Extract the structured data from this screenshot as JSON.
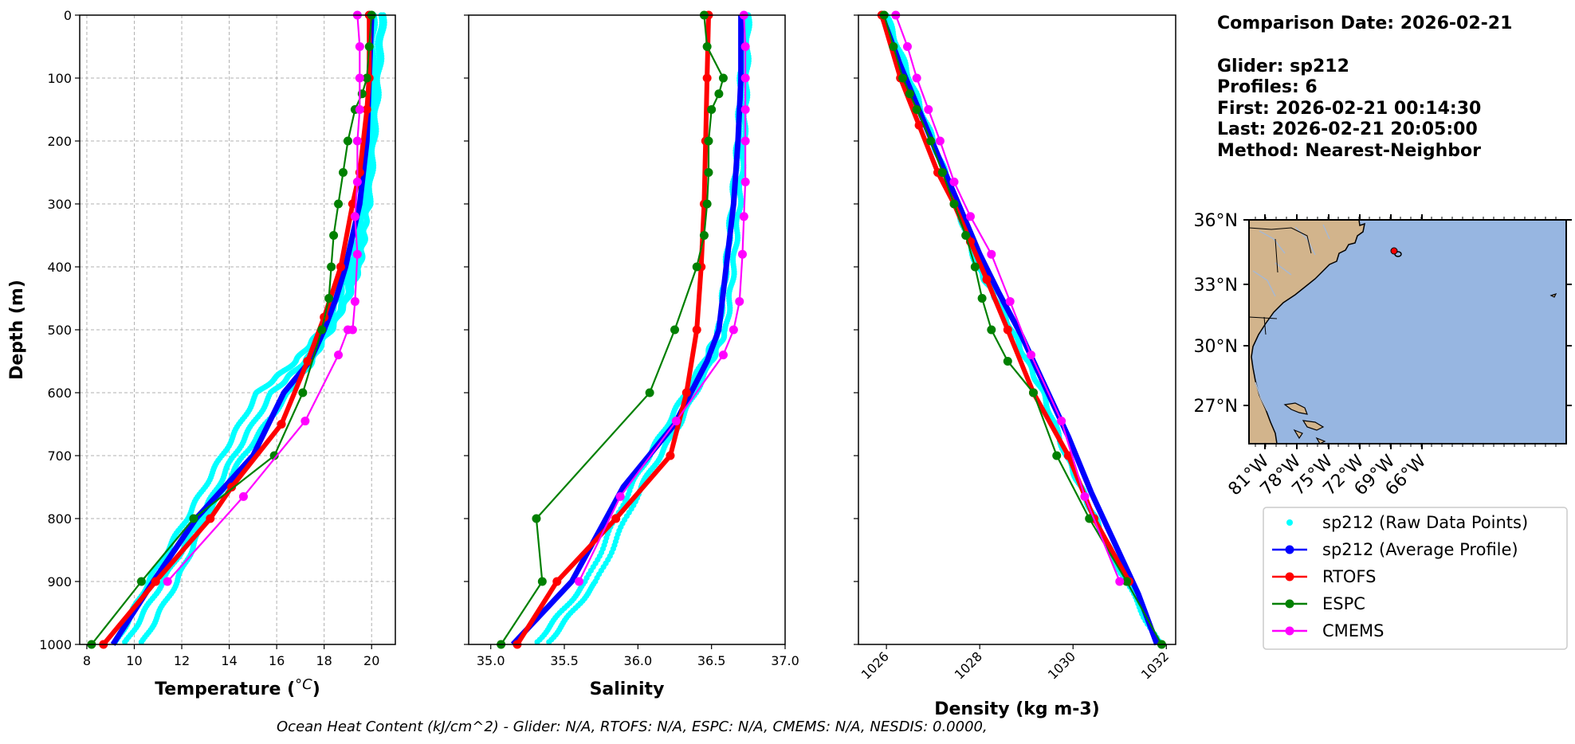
{
  "chart_data": [
    {
      "type": "line",
      "panel": "temperature",
      "xlabel": "Temperature (",
      "xlabel_unit": "°C",
      "xlabel_close": ")",
      "ylabel": "Depth (m)",
      "xlim": [
        7.7,
        21.0
      ],
      "ylim": [
        1000,
        0
      ],
      "xticks": [
        8,
        10,
        12,
        14,
        16,
        18,
        20
      ],
      "yticks": [
        0,
        100,
        200,
        300,
        400,
        500,
        600,
        700,
        800,
        900,
        1000
      ],
      "grid": true,
      "series": [
        {
          "name": "sp212 (Raw Data Points)",
          "style": "dots",
          "color": "#00ffff",
          "profiles": [
            {
              "x": [
                20.4,
                20.2,
                20.0,
                19.8,
                19.7,
                19.5,
                19.0,
                18.3,
                17.2,
                15.8,
                14.2,
                12.8,
                11.2,
                9.6
              ],
              "y": [
                0,
                100,
                200,
                300,
                350,
                400,
                450,
                500,
                550,
                600,
                700,
                800,
                900,
                1000
              ]
            },
            {
              "x": [
                20.1,
                20.0,
                19.9,
                19.6,
                19.4,
                19.1,
                18.6,
                17.9,
                16.8,
                15.2,
                13.7,
                12.2,
                10.6,
                9.2
              ],
              "y": [
                0,
                100,
                200,
                300,
                350,
                400,
                450,
                500,
                550,
                600,
                700,
                800,
                900,
                1000
              ]
            },
            {
              "x": [
                20.5,
                20.3,
                20.1,
                19.9,
                19.6,
                19.3,
                18.9,
                18.2,
                17.5,
                16.5,
                14.6,
                13.0,
                11.8,
                10.3
              ],
              "y": [
                0,
                100,
                200,
                300,
                350,
                400,
                450,
                500,
                550,
                600,
                700,
                800,
                900,
                1000
              ]
            }
          ]
        },
        {
          "name": "sp212 (Average Profile)",
          "color": "#0000ff",
          "x": [
            20.0,
            19.9,
            19.8,
            19.5,
            19.2,
            18.9,
            18.5,
            18.0,
            17.4,
            16.3,
            15.0,
            12.6,
            10.8,
            9.1
          ],
          "y": [
            0,
            100,
            200,
            300,
            350,
            400,
            450,
            500,
            550,
            600,
            700,
            800,
            900,
            1000
          ]
        },
        {
          "name": "RTOFS",
          "color": "#ff0000",
          "x": [
            19.9,
            19.9,
            19.8,
            19.5,
            19.2,
            18.7,
            18.0,
            17.3,
            16.2,
            14.1,
            13.2,
            10.9,
            8.7
          ],
          "y": [
            0,
            100,
            150,
            250,
            300,
            400,
            480,
            550,
            650,
            750,
            800,
            900,
            1000
          ]
        },
        {
          "name": "ESPC",
          "color": "#008000",
          "x": [
            20.0,
            19.9,
            19.8,
            19.6,
            19.3,
            19.0,
            18.8,
            18.6,
            18.4,
            18.3,
            18.2,
            17.9,
            17.1,
            15.9,
            12.5,
            10.3,
            8.2
          ],
          "y": [
            0,
            50,
            100,
            125,
            150,
            200,
            250,
            300,
            350,
            400,
            450,
            500,
            600,
            700,
            800,
            900,
            1000
          ]
        },
        {
          "name": "CMEMS",
          "color": "#ff00ff",
          "x": [
            19.4,
            19.5,
            19.5,
            19.5,
            19.4,
            19.4,
            19.3,
            19.4,
            19.3,
            19.2,
            19.0,
            18.6,
            17.2,
            14.6,
            11.4
          ],
          "y": [
            0,
            50,
            100,
            150,
            200,
            265,
            320,
            380,
            455,
            500,
            500,
            540,
            645,
            765,
            900
          ]
        }
      ]
    },
    {
      "type": "line",
      "panel": "salinity",
      "xlabel": "Salinity",
      "xlim": [
        34.85,
        37.0
      ],
      "ylim": [
        1000,
        0
      ],
      "xticks": [
        "35.0",
        "35.5",
        "36.0",
        "36.5",
        "37.0"
      ],
      "grid": false,
      "series": [
        {
          "name": "sp212 (Raw Data Points)",
          "style": "dots",
          "color": "#00ffff",
          "profiles": [
            {
              "x": [
                36.72,
                36.7,
                36.68,
                36.64,
                36.6,
                36.55,
                36.45,
                36.2,
                35.95,
                35.65,
                35.3
              ],
              "y": [
                0,
                100,
                200,
                300,
                400,
                500,
                550,
                650,
                750,
                900,
                1000
              ]
            },
            {
              "x": [
                36.75,
                36.74,
                36.72,
                36.69,
                36.65,
                36.6,
                36.5,
                36.28,
                36.02,
                35.72,
                35.38
              ],
              "y": [
                0,
                100,
                200,
                300,
                400,
                500,
                550,
                650,
                750,
                900,
                1000
              ]
            }
          ]
        },
        {
          "name": "sp212 (Average Profile)",
          "color": "#0000ff",
          "x": [
            36.7,
            36.7,
            36.68,
            36.65,
            36.6,
            36.55,
            36.47,
            36.25,
            35.9,
            35.55,
            35.15
          ],
          "y": [
            0,
            100,
            200,
            300,
            400,
            500,
            550,
            650,
            750,
            900,
            1000
          ]
        },
        {
          "name": "RTOFS",
          "color": "#ff0000",
          "x": [
            36.48,
            36.47,
            36.46,
            36.45,
            36.43,
            36.4,
            36.33,
            36.22,
            35.85,
            35.45,
            35.18
          ],
          "y": [
            0,
            100,
            200,
            300,
            400,
            500,
            600,
            700,
            800,
            900,
            1000
          ]
        },
        {
          "name": "ESPC",
          "color": "#008000",
          "x": [
            36.45,
            36.47,
            36.58,
            36.55,
            36.5,
            36.48,
            36.48,
            36.47,
            36.45,
            36.4,
            36.25,
            36.08,
            35.31,
            35.35,
            35.07
          ],
          "y": [
            0,
            50,
            100,
            125,
            150,
            200,
            250,
            300,
            350,
            400,
            500,
            600,
            800,
            900,
            1000
          ]
        },
        {
          "name": "CMEMS",
          "color": "#ff00ff",
          "x": [
            36.72,
            36.73,
            36.73,
            36.73,
            36.73,
            36.73,
            36.72,
            36.71,
            36.69,
            36.65,
            36.58,
            36.26,
            35.88,
            35.6
          ],
          "y": [
            0,
            50,
            100,
            150,
            200,
            265,
            320,
            380,
            455,
            500,
            540,
            645,
            765,
            900
          ]
        }
      ]
    },
    {
      "type": "line",
      "panel": "density",
      "xlabel": "Density (kg m-3)",
      "xlim": [
        1025.4,
        1032.2
      ],
      "ylim": [
        1000,
        0
      ],
      "xticks": [
        1026,
        1028,
        1030,
        1032
      ],
      "grid": false,
      "series": [
        {
          "name": "sp212 (Raw Data Points)",
          "style": "dots",
          "color": "#00ffff",
          "profiles": [
            {
              "x": [
                1026.0,
                1026.5,
                1027.0,
                1027.5,
                1027.95,
                1028.35,
                1028.85,
                1029.35,
                1029.85,
                1030.35,
                1030.85,
                1031.85
              ],
              "y": [
                0,
                100,
                200,
                300,
                400,
                450,
                525,
                600,
                700,
                780,
                860,
                1000
              ]
            }
          ]
        },
        {
          "name": "sp212 (Average Profile)",
          "color": "#0000ff",
          "x": [
            1025.9,
            1026.3,
            1026.75,
            1027.2,
            1027.6,
            1028.0,
            1028.4,
            1028.9,
            1029.4,
            1029.9,
            1030.4,
            1030.9,
            1031.4,
            1031.8
          ],
          "y": [
            0,
            80,
            160,
            240,
            310,
            380,
            440,
            510,
            590,
            670,
            760,
            840,
            920,
            1000
          ]
        },
        {
          "name": "RTOFS",
          "color": "#ff0000",
          "x": [
            1025.9,
            1026.3,
            1026.7,
            1027.1,
            1027.45,
            1027.8,
            1028.15,
            1028.6,
            1029.15,
            1029.9,
            1030.45,
            1031.2
          ],
          "y": [
            0,
            100,
            175,
            250,
            300,
            360,
            420,
            500,
            600,
            700,
            800,
            900
          ]
        },
        {
          "name": "ESPC",
          "color": "#008000",
          "x": [
            1025.95,
            1026.15,
            1026.35,
            1026.5,
            1026.65,
            1026.95,
            1027.2,
            1027.45,
            1027.7,
            1027.9,
            1028.05,
            1028.25,
            1028.6,
            1029.15,
            1029.65,
            1030.35,
            1031.15,
            1031.9
          ],
          "y": [
            0,
            50,
            100,
            125,
            150,
            200,
            250,
            300,
            350,
            400,
            450,
            500,
            550,
            600,
            700,
            800,
            900,
            1000
          ]
        },
        {
          "name": "CMEMS",
          "color": "#ff00ff",
          "x": [
            1026.2,
            1026.45,
            1026.65,
            1026.9,
            1027.15,
            1027.45,
            1027.8,
            1028.25,
            1028.65,
            1029.1,
            1029.75,
            1030.25,
            1031.0
          ],
          "y": [
            0,
            50,
            100,
            150,
            200,
            265,
            320,
            380,
            455,
            540,
            645,
            765,
            900
          ]
        }
      ]
    }
  ],
  "info": {
    "comparison": "Comparison Date: 2026-02-21",
    "glider": "Glider: sp212",
    "profiles": "Profiles: 6",
    "first": "First: 2026-02-21 00:14:30",
    "last": "Last: 2026-02-21 20:05:00",
    "method": "Method: Nearest-Neighbor"
  },
  "map": {
    "lat_labels": [
      "36°N",
      "33°N",
      "30°N",
      "27°N"
    ],
    "lon_labels": [
      "81°W",
      "78°W",
      "75°W",
      "72°W",
      "69°W",
      "66°W"
    ],
    "ocean_color": "#97b6e1",
    "land_color": "#d2b48c",
    "glider_marker": {
      "lon": -73.7,
      "lat": 35.3,
      "color": "#ff0000"
    }
  },
  "legend": {
    "items": [
      {
        "label": "sp212 (Raw Data Points)",
        "color": "#00ffff",
        "style": "dot"
      },
      {
        "label": "sp212 (Average Profile)",
        "color": "#0000ff",
        "style": "line"
      },
      {
        "label": "RTOFS",
        "color": "#ff0000",
        "style": "line"
      },
      {
        "label": "ESPC",
        "color": "#008000",
        "style": "line"
      },
      {
        "label": "CMEMS",
        "color": "#ff00ff",
        "style": "line"
      }
    ]
  },
  "footer": "Ocean Heat Content (kJ/cm^2) - Glider: N/A,  RTOFS: N/A,  ESPC: N/A,  CMEMS: N/A,  NESDIS: 0.0000,"
}
